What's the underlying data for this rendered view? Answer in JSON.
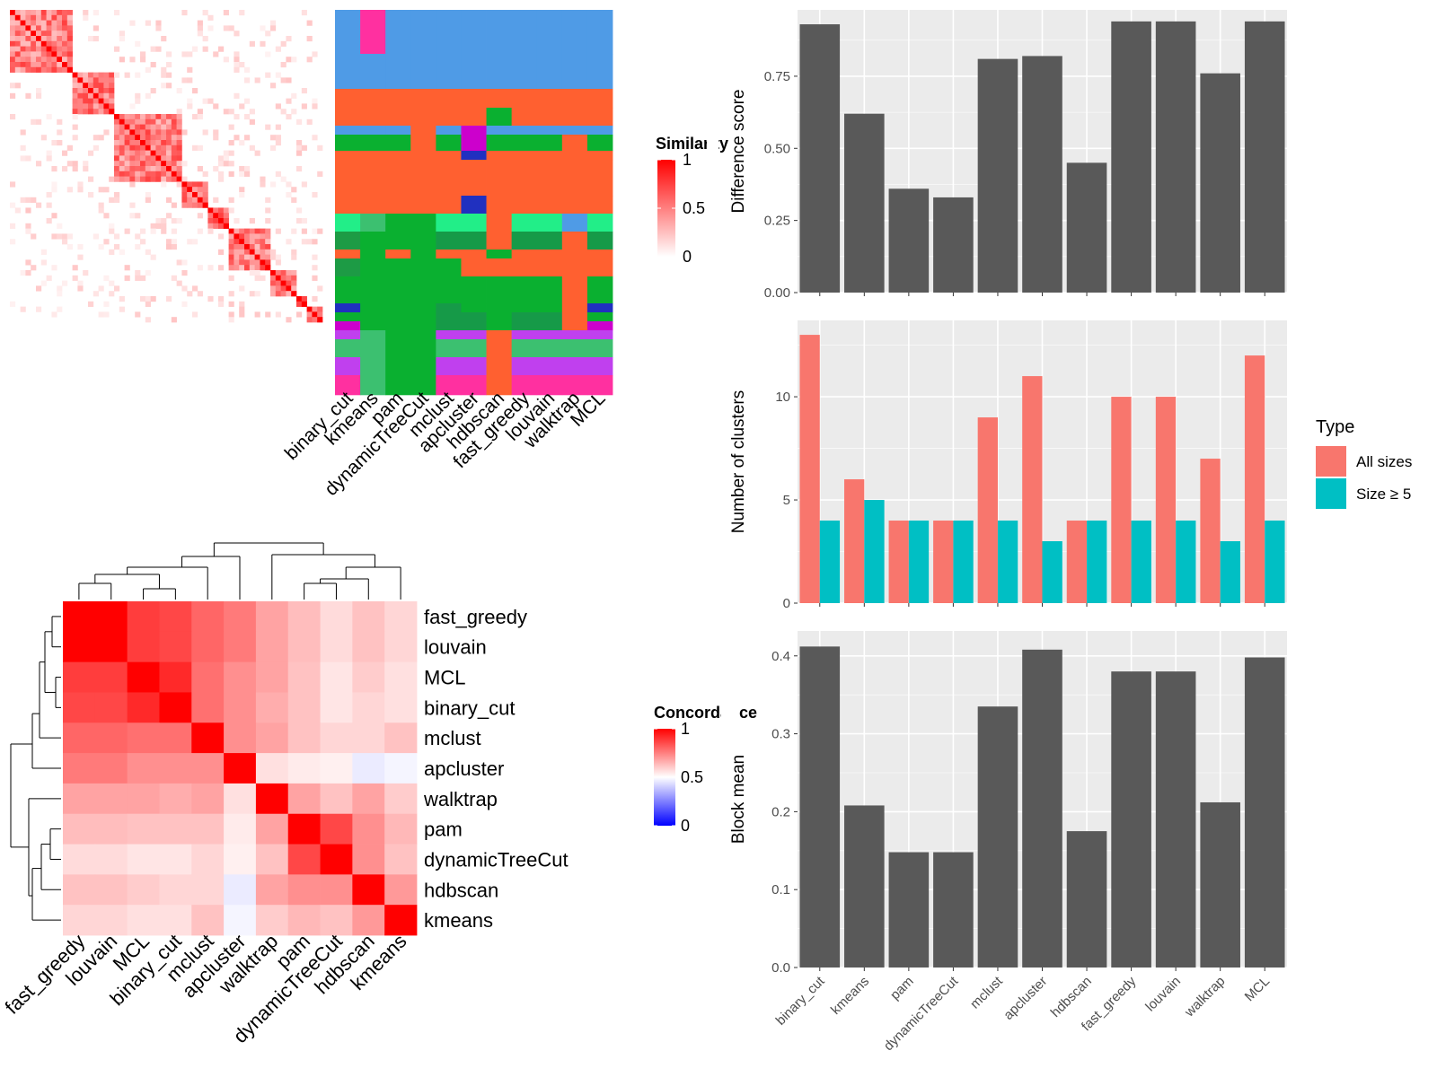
{
  "chart_data": [
    {
      "type": "heatmap",
      "panel": "similarity-matrix",
      "legend_title": "Similarity",
      "legend_ticks": [
        "1",
        "0.5",
        "0"
      ],
      "color_low": "#ffffff",
      "color_high": "#ff0000"
    },
    {
      "type": "heatmap",
      "panel": "cluster-assignments",
      "columns": [
        "binary_cut",
        "kmeans",
        "pam",
        "dynamicTreeCut",
        "mclust",
        "apcluster",
        "hdbscan",
        "fast_greedy",
        "louvain",
        "walktrap",
        "MCL"
      ],
      "palette": [
        "#4f9be6",
        "#ff6030",
        "#0ab030",
        "#22ee88",
        "#169a48",
        "#2030c0",
        "#cc00cc",
        "#3cc070",
        "#ff30a0",
        "#c040ee",
        "#1d9b45"
      ]
    },
    {
      "type": "heatmap",
      "panel": "concordance",
      "legend_title": "Concordance",
      "legend_ticks": [
        "1",
        "0.5",
        "0"
      ],
      "color_low": "#0000ff",
      "color_mid": "#ffffff",
      "color_high": "#ff0000",
      "row_labels": [
        "fast_greedy",
        "louvain",
        "MCL",
        "binary_cut",
        "mclust",
        "apcluster",
        "walktrap",
        "pam",
        "dynamicTreeCut",
        "hdbscan",
        "kmeans"
      ],
      "col_labels": [
        "fast_greedy",
        "louvain",
        "MCL",
        "binary_cut",
        "mclust",
        "apcluster",
        "walktrap",
        "pam",
        "dynamicTreeCut",
        "hdbscan",
        "kmeans"
      ],
      "values": [
        [
          1.0,
          1.0,
          0.88,
          0.86,
          0.8,
          0.76,
          0.68,
          0.63,
          0.57,
          0.62,
          0.58
        ],
        [
          1.0,
          1.0,
          0.88,
          0.86,
          0.8,
          0.76,
          0.68,
          0.63,
          0.57,
          0.62,
          0.58
        ],
        [
          0.88,
          0.88,
          1.0,
          0.92,
          0.78,
          0.72,
          0.68,
          0.62,
          0.55,
          0.6,
          0.56
        ],
        [
          0.86,
          0.86,
          0.92,
          1.0,
          0.78,
          0.72,
          0.66,
          0.62,
          0.55,
          0.58,
          0.56
        ],
        [
          0.8,
          0.8,
          0.78,
          0.78,
          1.0,
          0.72,
          0.68,
          0.62,
          0.58,
          0.58,
          0.62
        ],
        [
          0.76,
          0.76,
          0.72,
          0.72,
          0.72,
          1.0,
          0.56,
          0.54,
          0.53,
          0.46,
          0.48
        ],
        [
          0.68,
          0.68,
          0.68,
          0.66,
          0.68,
          0.56,
          1.0,
          0.68,
          0.62,
          0.68,
          0.6
        ],
        [
          0.63,
          0.63,
          0.62,
          0.62,
          0.62,
          0.54,
          0.68,
          1.0,
          0.86,
          0.72,
          0.64
        ],
        [
          0.57,
          0.57,
          0.55,
          0.55,
          0.58,
          0.53,
          0.62,
          0.86,
          1.0,
          0.72,
          0.62
        ],
        [
          0.62,
          0.62,
          0.6,
          0.58,
          0.58,
          0.46,
          0.68,
          0.72,
          0.72,
          1.0,
          0.7
        ],
        [
          0.58,
          0.58,
          0.56,
          0.56,
          0.62,
          0.48,
          0.6,
          0.64,
          0.62,
          0.7,
          1.0
        ]
      ]
    },
    {
      "type": "bar",
      "panel": "difference-score",
      "ylabel": "Difference score",
      "categories": [
        "binary_cut",
        "kmeans",
        "pam",
        "dynamicTreeCut",
        "mclust",
        "apcluster",
        "hdbscan",
        "fast_greedy",
        "louvain",
        "walktrap",
        "MCL"
      ],
      "values": [
        0.93,
        0.62,
        0.36,
        0.33,
        0.81,
        0.82,
        0.45,
        0.94,
        0.94,
        0.76,
        0.94
      ],
      "ylim": [
        0,
        0.98
      ],
      "yticks": [
        0,
        0.25,
        0.5,
        0.75
      ],
      "ytick_labels": [
        "0.00",
        "0.25",
        "0.50",
        "0.75"
      ],
      "bar_color": "#595959",
      "panel_bg": "#ebebeb"
    },
    {
      "type": "bar",
      "panel": "number-of-clusters",
      "ylabel": "Number of clusters",
      "categories": [
        "binary_cut",
        "kmeans",
        "pam",
        "dynamicTreeCut",
        "mclust",
        "apcluster",
        "hdbscan",
        "fast_greedy",
        "louvain",
        "walktrap",
        "MCL"
      ],
      "series": [
        {
          "name": "All sizes",
          "values": [
            13,
            6,
            4,
            4,
            9,
            11,
            4,
            10,
            10,
            7,
            12
          ],
          "color": "#f8766d"
        },
        {
          "name": "Size ≥ 5",
          "values": [
            4,
            5,
            4,
            4,
            4,
            3,
            4,
            4,
            4,
            3,
            4
          ],
          "color": "#00bfc4"
        }
      ],
      "ylim": [
        0,
        13.7
      ],
      "yticks": [
        0,
        5,
        10
      ],
      "ytick_labels": [
        "0",
        "5",
        "10"
      ],
      "legend_title": "Type",
      "legend_position": "right",
      "panel_bg": "#ebebeb"
    },
    {
      "type": "bar",
      "panel": "block-mean",
      "ylabel": "Block mean",
      "categories": [
        "binary_cut",
        "kmeans",
        "pam",
        "dynamicTreeCut",
        "mclust",
        "apcluster",
        "hdbscan",
        "fast_greedy",
        "louvain",
        "walktrap",
        "MCL"
      ],
      "values": [
        0.412,
        0.208,
        0.148,
        0.148,
        0.335,
        0.408,
        0.175,
        0.38,
        0.38,
        0.212,
        0.398
      ],
      "ylim": [
        0,
        0.432
      ],
      "yticks": [
        0,
        0.1,
        0.2,
        0.3,
        0.4
      ],
      "ytick_labels": [
        "0.0",
        "0.1",
        "0.2",
        "0.3",
        "0.4"
      ],
      "bar_color": "#595959",
      "panel_bg": "#ebebeb"
    }
  ]
}
